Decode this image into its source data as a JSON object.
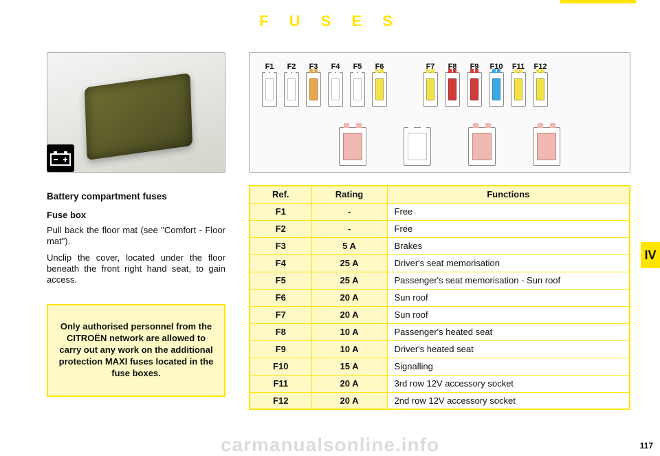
{
  "title": "F U S E S",
  "section_tab": "IV",
  "page_number": "117",
  "watermark": "carmanualsonline.info",
  "left": {
    "heading": "Battery compartment fuses",
    "subheading": "Fuse box",
    "para1": "Pull back the floor mat (see \"Comfort - Floor mat\").",
    "para2": "Unclip the cover, located under the floor beneath the front right hand seat, to gain access."
  },
  "warning": "Only authorised personnel from the CITROËN network are allowed to carry out any work on the additional protection MAXI fuses located in the fuse boxes.",
  "diagram": {
    "mini_fuses": [
      {
        "label": "F1",
        "color": "#ffffff"
      },
      {
        "label": "F2",
        "color": "#ffffff"
      },
      {
        "label": "F3",
        "color": "#e6a84a"
      },
      {
        "label": "F4",
        "color": "#ffffff"
      },
      {
        "label": "F5",
        "color": "#ffffff"
      },
      {
        "label": "F6",
        "color": "#f2e24a"
      },
      {
        "label": "F7",
        "color": "#f2e24a"
      },
      {
        "label": "F8",
        "color": "#d23a3a"
      },
      {
        "label": "F9",
        "color": "#d23a3a"
      },
      {
        "label": "F10",
        "color": "#3aa8e6"
      },
      {
        "label": "F11",
        "color": "#f2e24a"
      },
      {
        "label": "F12",
        "color": "#f2e24a"
      }
    ],
    "maxi_fuses": [
      {
        "color": "#f0b8b0"
      },
      {
        "color": "#ffffff"
      },
      {
        "color": "#f0b8b0"
      },
      {
        "color": "#f0b8b0"
      }
    ]
  },
  "table": {
    "headers": {
      "ref": "Ref.",
      "rating": "Rating",
      "functions": "Functions"
    },
    "rows": [
      {
        "ref": "F1",
        "rating": "-",
        "func": "Free"
      },
      {
        "ref": "F2",
        "rating": "-",
        "func": "Free"
      },
      {
        "ref": "F3",
        "rating": "5 A",
        "func": "Brakes"
      },
      {
        "ref": "F4",
        "rating": "25 A",
        "func": "Driver's seat memorisation"
      },
      {
        "ref": "F5",
        "rating": "25 A",
        "func": "Passenger's seat memorisation - Sun roof"
      },
      {
        "ref": "F6",
        "rating": "20 A",
        "func": "Sun roof"
      },
      {
        "ref": "F7",
        "rating": "20 A",
        "func": "Sun roof"
      },
      {
        "ref": "F8",
        "rating": "10 A",
        "func": "Passenger's heated seat"
      },
      {
        "ref": "F9",
        "rating": "10 A",
        "func": "Driver's heated seat"
      },
      {
        "ref": "F10",
        "rating": "15 A",
        "func": "Signalling"
      },
      {
        "ref": "F11",
        "rating": "20 A",
        "func": "3rd row 12V accessory socket"
      },
      {
        "ref": "F12",
        "rating": "20 A",
        "func": "2nd row 12V accessory socket"
      }
    ]
  }
}
